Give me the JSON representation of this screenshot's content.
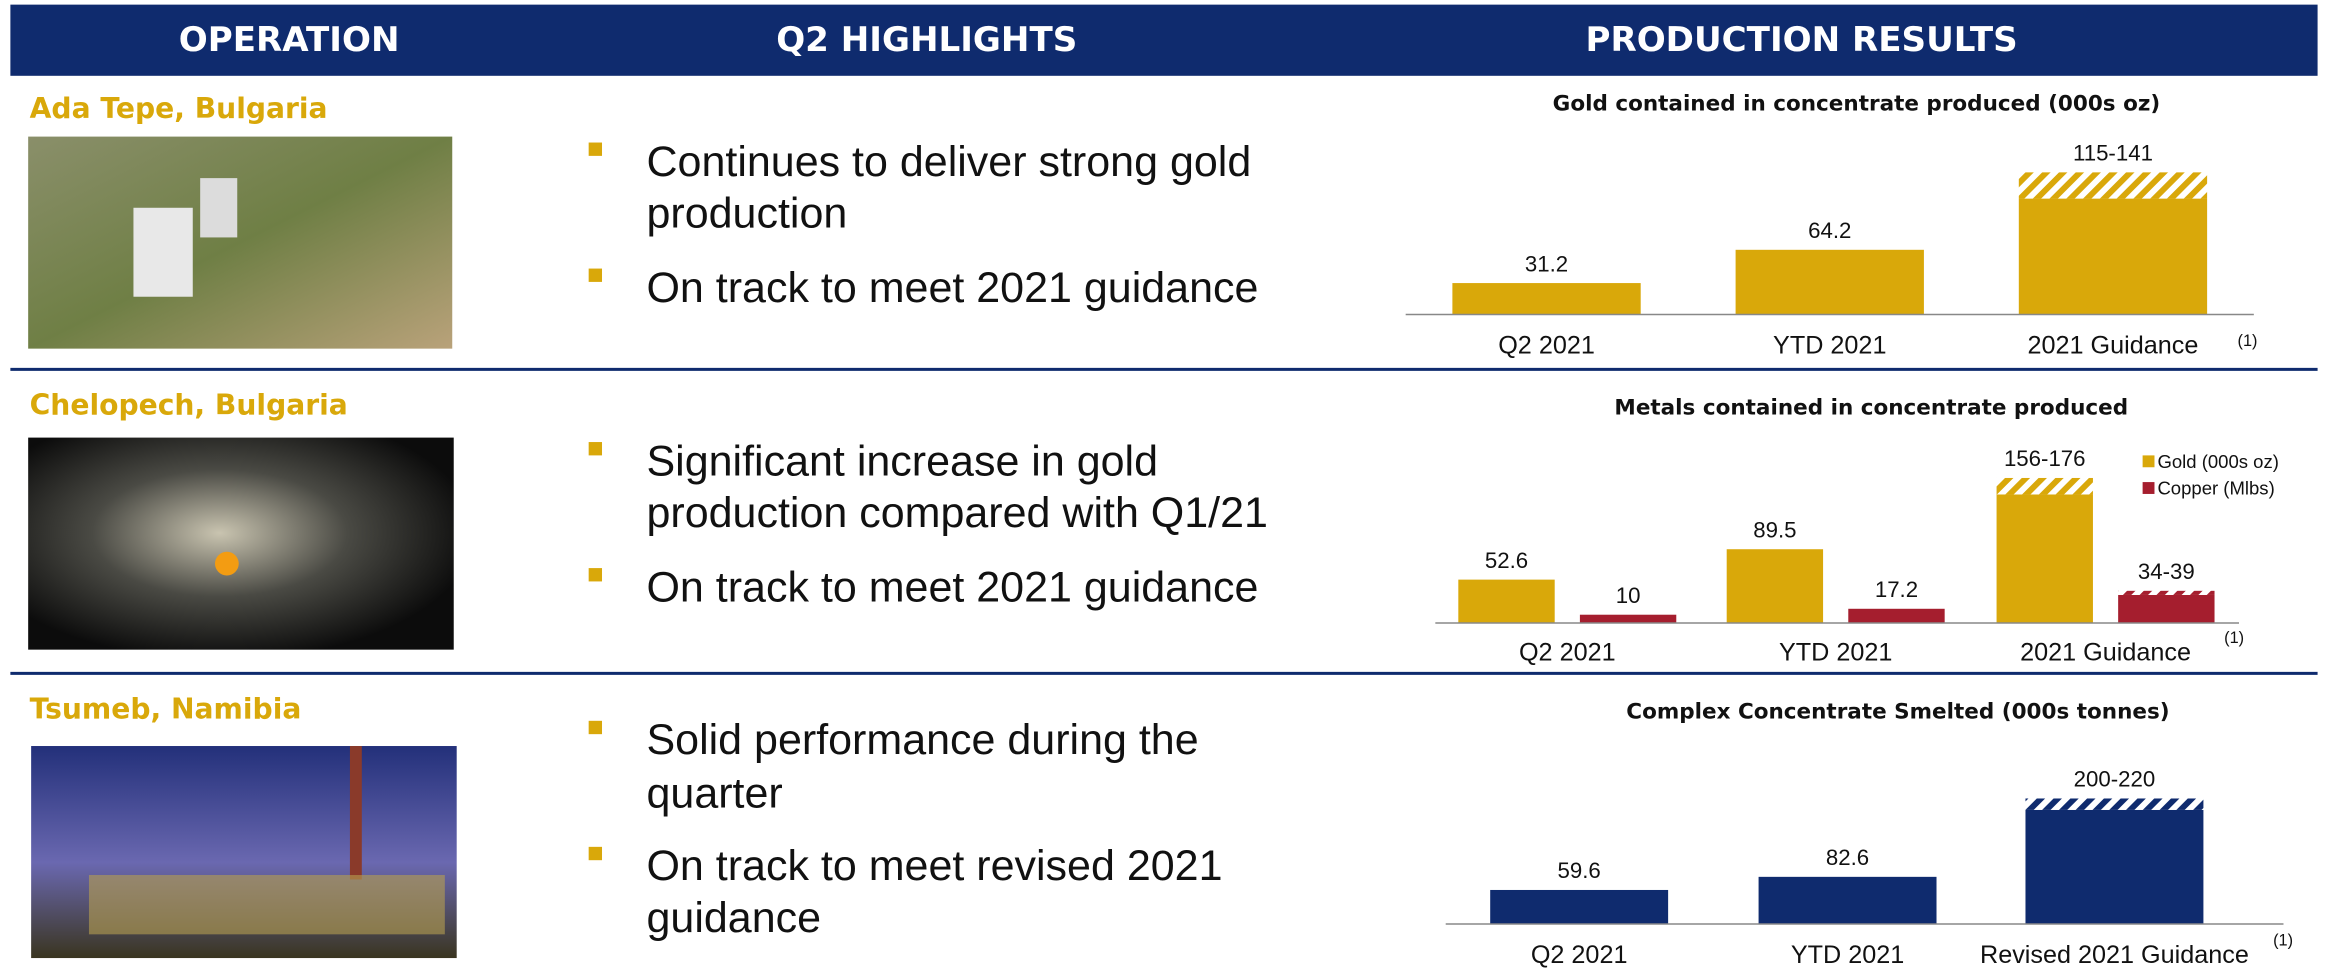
{
  "header": {
    "columns": [
      "OPERATION",
      "Q2 HIGHLIGHTS",
      "PRODUCTION RESULTS"
    ]
  },
  "rows": [
    {
      "operation": "Ada Tepe, Bulgaria",
      "bullets": [
        [
          "Continues to deliver strong gold",
          "production"
        ],
        [
          "On track to meet 2021 guidance"
        ]
      ]
    },
    {
      "operation": "Chelopech, Bulgaria",
      "bullets": [
        [
          "Significant increase in gold",
          "production compared with Q1/21"
        ],
        [
          "On track to meet 2021 guidance"
        ]
      ]
    },
    {
      "operation": "Tsumeb, Namibia",
      "bullets": [
        [
          "Solid performance during the",
          "quarter"
        ],
        [
          "On track to meet revised 2021",
          "guidance"
        ]
      ]
    }
  ],
  "chart_data": [
    {
      "type": "bar",
      "title": "Gold contained in concentrate produced (000s oz)",
      "categories": [
        "Q2 2021",
        "YTD 2021",
        "2021 Guidance"
      ],
      "note": "(1)",
      "values": [
        31.2,
        64.2,
        115
      ],
      "upper": [
        null,
        null,
        141
      ],
      "value_labels": [
        null,
        null,
        "115-141"
      ],
      "color": "#D9A80A",
      "ylim": [
        0,
        150
      ]
    },
    {
      "type": "bar",
      "title": "Metals contained in concentrate produced",
      "categories": [
        "Q2 2021",
        "YTD 2021",
        "2021 Guidance"
      ],
      "note": "(1)",
      "series": [
        {
          "name": "Gold (000s oz)",
          "color": "#D9A80A",
          "values": [
            52.6,
            89.5,
            156
          ],
          "upper": [
            null,
            null,
            176
          ],
          "value_labels": [
            null,
            null,
            "156-176"
          ]
        },
        {
          "name": "Copper (Mlbs)",
          "color": "#A51E2E",
          "values": [
            10,
            17.2,
            34
          ],
          "upper": [
            null,
            null,
            39
          ],
          "value_labels": [
            null,
            null,
            "34-39"
          ]
        }
      ],
      "ylim": [
        0,
        180
      ]
    },
    {
      "type": "bar",
      "title": "Complex Concentrate Smelted (000s tonnes)",
      "categories": [
        "Q2 2021",
        "YTD 2021",
        "Revised 2021 Guidance"
      ],
      "note": "(1)",
      "values": [
        59.6,
        82.6,
        200
      ],
      "upper": [
        null,
        null,
        220
      ],
      "value_labels": [
        null,
        null,
        "200-220"
      ],
      "color": "#0F2B6E",
      "ylim": [
        0,
        260
      ]
    }
  ]
}
